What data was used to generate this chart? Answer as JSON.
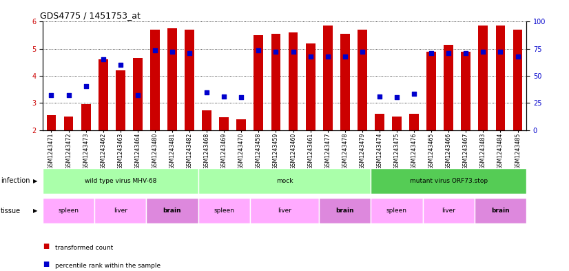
{
  "title": "GDS4775 / 1451753_at",
  "samples": [
    "GSM1243471",
    "GSM1243472",
    "GSM1243473",
    "GSM1243462",
    "GSM1243463",
    "GSM1243464",
    "GSM1243480",
    "GSM1243481",
    "GSM1243482",
    "GSM1243468",
    "GSM1243469",
    "GSM1243470",
    "GSM1243458",
    "GSM1243459",
    "GSM1243460",
    "GSM1243461",
    "GSM1243477",
    "GSM1243478",
    "GSM1243479",
    "GSM1243474",
    "GSM1243475",
    "GSM1243476",
    "GSM1243465",
    "GSM1243466",
    "GSM1243467",
    "GSM1243483",
    "GSM1243484",
    "GSM1243485"
  ],
  "bar_values": [
    2.55,
    2.5,
    2.95,
    4.6,
    4.2,
    4.65,
    5.7,
    5.75,
    5.7,
    2.72,
    2.48,
    2.4,
    5.5,
    5.55,
    5.6,
    5.2,
    5.85,
    5.55,
    5.7,
    2.6,
    2.5,
    2.6,
    4.9,
    5.15,
    4.9,
    5.85,
    5.85,
    5.7
  ],
  "dot_values": [
    3.3,
    3.28,
    3.62,
    4.62,
    4.42,
    3.28,
    4.95,
    4.88,
    4.85,
    3.38,
    3.25,
    3.22,
    4.95,
    4.88,
    4.88,
    4.72,
    4.72,
    4.72,
    4.88,
    3.25,
    3.22,
    3.35,
    4.85,
    4.85,
    4.85,
    4.88,
    4.88,
    4.72
  ],
  "ylim_left": [
    2,
    6
  ],
  "ylim_right": [
    0,
    100
  ],
  "yticks_left": [
    2,
    3,
    4,
    5,
    6
  ],
  "yticks_right": [
    0,
    25,
    50,
    75,
    100
  ],
  "bar_color": "#cc0000",
  "dot_color": "#0000cc",
  "bar_bottom": 2,
  "infection_groups": [
    {
      "label": "wild type virus MHV-68",
      "start": 0,
      "end": 9,
      "color": "#aaffaa"
    },
    {
      "label": "mock",
      "start": 9,
      "end": 19,
      "color": "#aaffaa"
    },
    {
      "label": "mutant virus ORF73.stop",
      "start": 19,
      "end": 28,
      "color": "#55cc55"
    }
  ],
  "tissue_groups": [
    {
      "label": "spleen",
      "start": 0,
      "end": 3,
      "color": "#ffaaff"
    },
    {
      "label": "liver",
      "start": 3,
      "end": 6,
      "color": "#ffaaff"
    },
    {
      "label": "brain",
      "start": 6,
      "end": 9,
      "color": "#dd88dd"
    },
    {
      "label": "spleen",
      "start": 9,
      "end": 12,
      "color": "#ffaaff"
    },
    {
      "label": "liver",
      "start": 12,
      "end": 16,
      "color": "#ffaaff"
    },
    {
      "label": "brain",
      "start": 16,
      "end": 19,
      "color": "#dd88dd"
    },
    {
      "label": "spleen",
      "start": 19,
      "end": 22,
      "color": "#ffaaff"
    },
    {
      "label": "liver",
      "start": 22,
      "end": 25,
      "color": "#ffaaff"
    },
    {
      "label": "brain",
      "start": 25,
      "end": 28,
      "color": "#dd88dd"
    }
  ],
  "legend_items": [
    {
      "label": "transformed count",
      "color": "#cc0000"
    },
    {
      "label": "percentile rank within the sample",
      "color": "#0000cc"
    }
  ]
}
